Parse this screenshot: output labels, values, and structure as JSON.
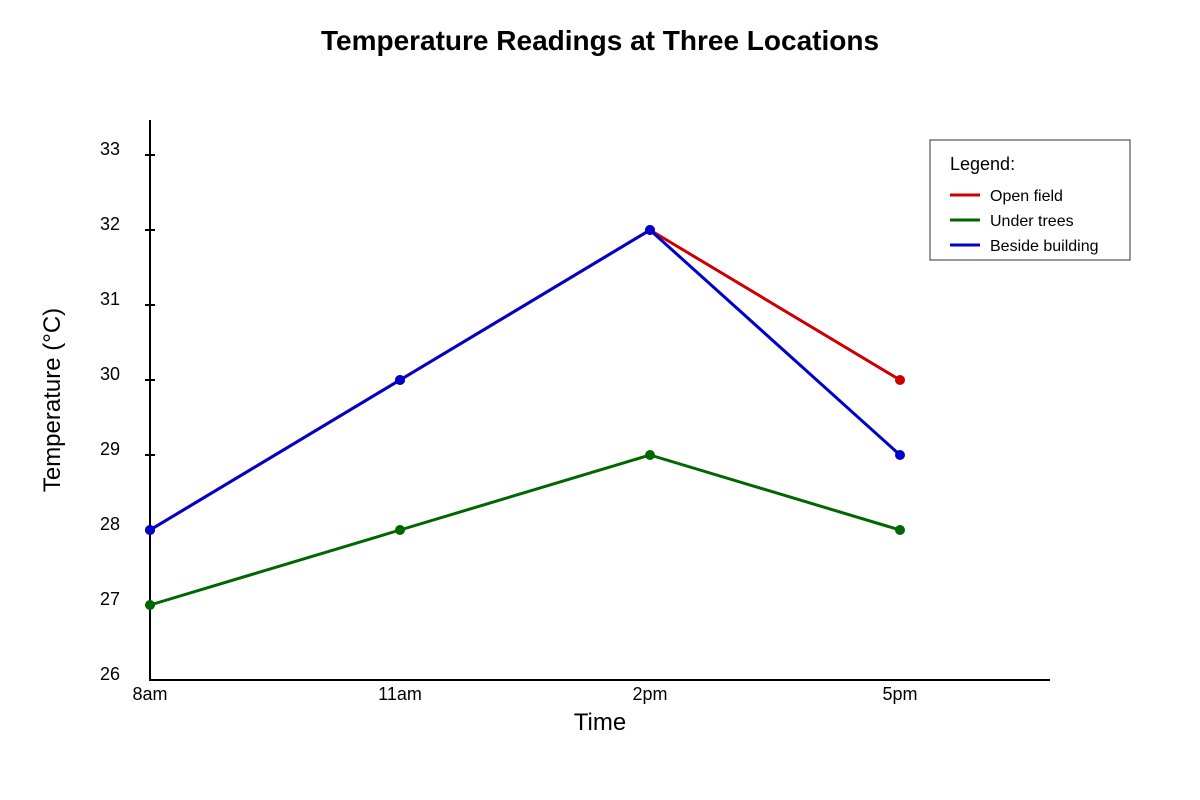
{
  "chart_data": {
    "type": "line",
    "title": "Temperature Readings at Three Locations",
    "xlabel": "Time",
    "ylabel": "Temperature (°C)",
    "categories": [
      "8am",
      "11am",
      "2pm",
      "5pm"
    ],
    "ylim": [
      26,
      33
    ],
    "yticks": [
      26,
      27,
      28,
      29,
      30,
      31,
      32,
      33
    ],
    "grid": false,
    "legend": {
      "title": "Legend:",
      "placement": "top-right"
    },
    "series": [
      {
        "name": "Open field",
        "color": "#cc0000",
        "values": [
          28,
          30,
          32,
          30
        ]
      },
      {
        "name": "Under trees",
        "color": "#006600",
        "values": [
          27,
          28,
          29,
          28
        ]
      },
      {
        "name": "Beside building",
        "color": "#0000cc",
        "values": [
          28,
          30,
          32,
          29
        ]
      }
    ]
  }
}
